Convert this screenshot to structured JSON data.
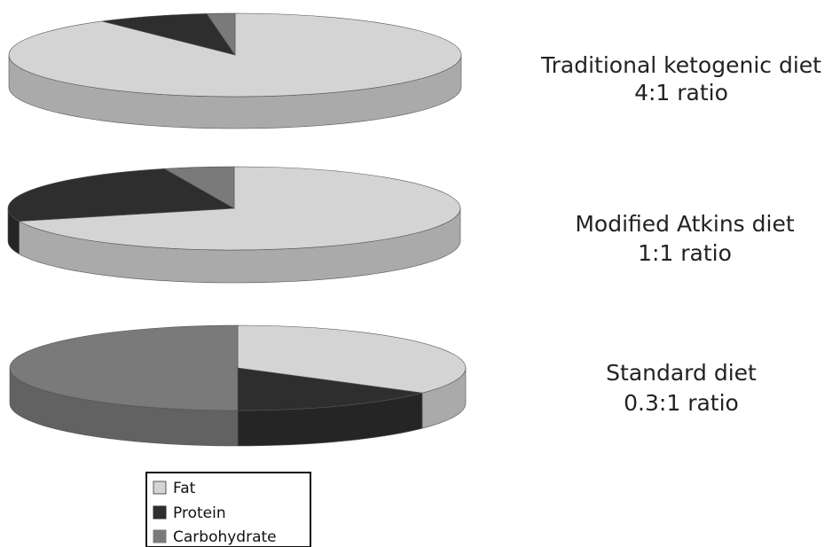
{
  "chart_data": [
    {
      "type": "pie",
      "title": "Traditional ketogenic diet",
      "subtitle": "4:1 ratio",
      "series": [
        {
          "name": "Fat",
          "value": 90
        },
        {
          "name": "Protein",
          "value": 8
        },
        {
          "name": "Carbohydrate",
          "value": 2
        }
      ]
    },
    {
      "type": "pie",
      "title": "Modified Atkins diet",
      "subtitle": "1:1 ratio",
      "series": [
        {
          "name": "Fat",
          "value": 70
        },
        {
          "name": "Protein",
          "value": 25
        },
        {
          "name": "Carbohydrate",
          "value": 5
        }
      ]
    },
    {
      "type": "pie",
      "title": "Standard diet",
      "subtitle": "0.3:1 ratio",
      "series": [
        {
          "name": "Fat",
          "value": 35
        },
        {
          "name": "Protein",
          "value": 15
        },
        {
          "name": "Carbohydrate",
          "value": 50
        }
      ]
    }
  ],
  "legend": {
    "placement": "bottom",
    "items": [
      {
        "label": "Fat",
        "color": "#d4d4d4"
      },
      {
        "label": "Protein",
        "color": "#2e2e2e"
      },
      {
        "label": "Carbohydrate",
        "color": "#7a7a7a"
      }
    ]
  },
  "colors": {
    "Fat": "#d4d4d4",
    "Protein": "#2e2e2e",
    "Carbohydrate": "#7a7a7a"
  }
}
